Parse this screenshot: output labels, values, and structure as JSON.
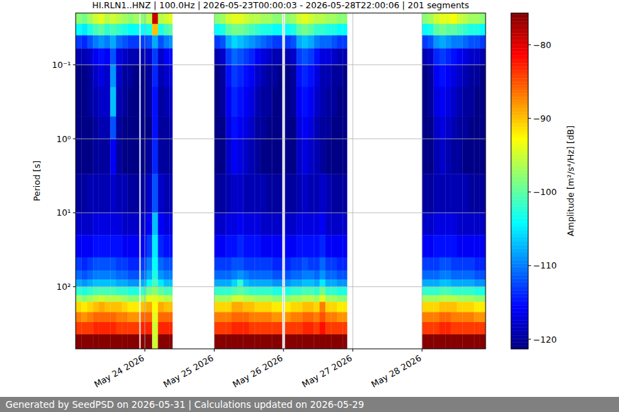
{
  "chart_data": {
    "type": "heatmap",
    "title": "HI.RLN1..HNZ | 100.0Hz | 2026-05-23T00:00:03 - 2026-05-28T22:00:06 | 201 segments",
    "footer": "Generated by SeedPSD on 2026-05-31 | Calculations updated on 2026-05-29",
    "y_label": "Period [s]",
    "log": "y",
    "grid": true,
    "xlim": [
      "2026-05-23T00:00",
      "2026-05-28T22:00"
    ],
    "ylim": [
      0.02,
      690
    ],
    "xticks": [
      {
        "value": "2026-05-24T00:00",
        "label": "May 24 2026"
      },
      {
        "value": "2026-05-25T00:00",
        "label": "May 25 2026"
      },
      {
        "value": "2026-05-26T00:00",
        "label": "May 26 2026"
      },
      {
        "value": "2026-05-27T00:00",
        "label": "May 27 2026"
      },
      {
        "value": "2026-05-28T00:00",
        "label": "May 28 2026"
      }
    ],
    "yticks": [
      {
        "value": 0.1,
        "label": "10⁻¹"
      },
      {
        "value": 1,
        "label": "10⁰"
      },
      {
        "value": 10,
        "label": "10¹"
      },
      {
        "value": 100,
        "label": "10²"
      }
    ],
    "x": [
      "2026-05-23T00:00",
      "2026-05-23T02:00",
      "2026-05-23T04:00",
      "2026-05-23T06:00",
      "2026-05-23T08:00",
      "2026-05-23T10:00",
      "2026-05-23T12:00",
      "2026-05-23T14:00",
      "2026-05-23T16:00",
      "2026-05-23T18:00",
      "2026-05-23T20:00",
      "2026-05-23T22:00",
      "2026-05-23T22:30",
      "2026-05-24T00:30",
      "2026-05-24T02:30",
      "2026-05-24T04:30",
      "2026-05-24T06:30",
      "2026-05-24T08:30",
      "2026-05-24T09:30",
      "2026-05-25T00:00",
      "2026-05-25T02:00",
      "2026-05-25T04:00",
      "2026-05-25T06:00",
      "2026-05-25T08:00",
      "2026-05-25T10:00",
      "2026-05-25T12:00",
      "2026-05-25T14:00",
      "2026-05-25T16:00",
      "2026-05-25T18:00",
      "2026-05-25T20:00",
      "2026-05-25T22:00",
      "2026-05-25T23:30",
      "2026-05-26T00:30",
      "2026-05-26T02:30",
      "2026-05-26T04:30",
      "2026-05-26T06:30",
      "2026-05-26T08:30",
      "2026-05-26T10:30",
      "2026-05-26T12:30",
      "2026-05-26T14:30",
      "2026-05-26T16:30",
      "2026-05-26T18:30",
      "2026-05-26T20:30",
      "2026-05-26T22:00",
      "2026-05-28T00:00",
      "2026-05-28T02:00",
      "2026-05-28T04:00",
      "2026-05-28T06:00",
      "2026-05-28T08:00",
      "2026-05-28T10:00",
      "2026-05-28T12:00",
      "2026-05-28T14:00",
      "2026-05-28T16:00",
      "2026-05-28T18:00",
      "2026-05-28T20:00",
      "2026-05-28T22:00"
    ],
    "y": [
      0.02,
      0.028,
      0.04,
      0.06,
      0.1,
      0.2,
      0.5,
      1,
      3,
      10,
      20,
      40,
      60,
      80,
      100,
      130,
      160,
      220,
      300,
      440,
      690
    ],
    "cells": [
      [
        -98,
        -104,
        -113,
        -119,
        -121,
        -121,
        -121,
        -121,
        -120,
        -118,
        -116,
        -113,
        -111,
        -108,
        -102,
        -97,
        -91,
        -87,
        -84,
        -76
      ],
      [
        -99,
        -105,
        -114,
        -119,
        -121,
        -121,
        -121,
        -121,
        -120,
        -118,
        -116,
        -114,
        -112,
        -109,
        -103,
        -98,
        -92,
        -88,
        -84,
        -76
      ],
      [
        -97,
        -103,
        -112,
        -118,
        -120,
        -120,
        -121,
        -121,
        -119,
        -118,
        -116,
        -113,
        -111,
        -108,
        -102,
        -97,
        -91,
        -87,
        -84,
        -76
      ],
      [
        -95,
        -101,
        -110,
        -116,
        -118,
        -119,
        -120,
        -120,
        -119,
        -117,
        -115,
        -112,
        -110,
        -107,
        -101,
        -96,
        -90,
        -86,
        -83,
        -76
      ],
      [
        -94,
        -100,
        -109,
        -115,
        -117,
        -118,
        -119,
        -120,
        -119,
        -117,
        -115,
        -112,
        -110,
        -107,
        -101,
        -95,
        -89,
        -86,
        -83,
        -76
      ],
      [
        -96,
        -102,
        -110,
        -116,
        -118,
        -118,
        -119,
        -120,
        -119,
        -117,
        -115,
        -112,
        -110,
        -107,
        -101,
        -96,
        -90,
        -86,
        -83,
        -76
      ],
      [
        -95,
        -101,
        -108,
        -112,
        -109,
        -107,
        -112,
        -116,
        -118,
        -117,
        -115,
        -112,
        -110,
        -107,
        -101,
        -96,
        -90,
        -86,
        -83,
        -76
      ],
      [
        -96,
        -102,
        -111,
        -117,
        -118,
        -119,
        -120,
        -120,
        -119,
        -117,
        -115,
        -113,
        -111,
        -108,
        -102,
        -96,
        -90,
        -87,
        -84,
        -76
      ],
      [
        -97,
        -103,
        -112,
        -118,
        -120,
        -120,
        -121,
        -121,
        -119,
        -118,
        -116,
        -113,
        -111,
        -108,
        -102,
        -97,
        -91,
        -87,
        -84,
        -76
      ],
      [
        -98,
        -104,
        -113,
        -119,
        -120,
        -121,
        -121,
        -121,
        -120,
        -118,
        -116,
        -114,
        -112,
        -109,
        -103,
        -98,
        -92,
        -88,
        -84,
        -76
      ],
      [
        -97,
        -104,
        -113,
        -119,
        -121,
        -121,
        -121,
        -121,
        -120,
        -118,
        -116,
        -114,
        -112,
        -109,
        -103,
        -98,
        -92,
        -88,
        -84,
        -76
      ],
      null,
      [
        -98,
        -104,
        -113,
        -119,
        -121,
        -121,
        -121,
        -121,
        -120,
        -118,
        -116,
        -113,
        -111,
        -108,
        -102,
        -97,
        -90,
        -86,
        -83,
        -76
      ],
      [
        -96,
        -103,
        -112,
        -118,
        -120,
        -120,
        -121,
        -120,
        -118,
        -116,
        -113,
        -110,
        -108,
        -104,
        -99,
        -94,
        -89,
        -86,
        -83,
        -76
      ],
      [
        -79,
        -90,
        -108,
        -113,
        -114,
        -115,
        -115,
        -114,
        -112,
        -107,
        -105,
        -104,
        -103,
        -101,
        -98,
        -94,
        -93,
        -94,
        -95,
        -95
      ],
      [
        -96,
        -103,
        -112,
        -118,
        -119,
        -120,
        -120,
        -120,
        -118,
        -116,
        -114,
        -111,
        -109,
        -105,
        -100,
        -95,
        -89,
        -86,
        -83,
        -76
      ],
      [
        -95,
        -101,
        -110,
        -116,
        -118,
        -119,
        -120,
        -120,
        -119,
        -117,
        -115,
        -112,
        -110,
        -107,
        -101,
        -96,
        -90,
        -86,
        -83,
        -76
      ],
      [
        -94,
        -100,
        -109,
        -115,
        -117,
        -118,
        -119,
        -120,
        -119,
        -117,
        -115,
        -112,
        -110,
        -107,
        -101,
        -96,
        -90,
        -86,
        -83,
        -76
      ],
      null,
      [
        -98,
        -104,
        -113,
        -119,
        -121,
        -121,
        -121,
        -121,
        -120,
        -118,
        -116,
        -113,
        -111,
        -108,
        -102,
        -97,
        -91,
        -87,
        -84,
        -76
      ],
      [
        -97,
        -103,
        -112,
        -118,
        -120,
        -120,
        -121,
        -121,
        -120,
        -118,
        -116,
        -113,
        -111,
        -108,
        -102,
        -97,
        -91,
        -87,
        -84,
        -76
      ],
      [
        -95,
        -100,
        -108,
        -113,
        -115,
        -116,
        -117,
        -118,
        -119,
        -117,
        -115,
        -113,
        -111,
        -108,
        -102,
        -97,
        -91,
        -87,
        -84,
        -76
      ],
      [
        -94,
        -99,
        -106,
        -111,
        -113,
        -114,
        -115,
        -116,
        -118,
        -117,
        -115,
        -112,
        -110,
        -106,
        -101,
        -95,
        -89,
        -86,
        -83,
        -76
      ],
      [
        -94,
        -99,
        -107,
        -112,
        -114,
        -115,
        -116,
        -117,
        -118,
        -116,
        -114,
        -112,
        -109,
        -102,
        -100,
        -95,
        -89,
        -86,
        -83,
        -76
      ],
      [
        -95,
        -100,
        -108,
        -113,
        -115,
        -116,
        -117,
        -118,
        -119,
        -117,
        -115,
        -113,
        -110,
        -107,
        -101,
        -96,
        -90,
        -86,
        -83,
        -76
      ],
      [
        -96,
        -101,
        -109,
        -114,
        -116,
        -117,
        -118,
        -119,
        -119,
        -117,
        -115,
        -113,
        -111,
        -108,
        -102,
        -96,
        -90,
        -87,
        -84,
        -76
      ],
      [
        -96,
        -102,
        -110,
        -116,
        -118,
        -119,
        -120,
        -120,
        -119,
        -117,
        -115,
        -113,
        -111,
        -108,
        -102,
        -97,
        -91,
        -87,
        -84,
        -76
      ],
      [
        -97,
        -103,
        -111,
        -117,
        -119,
        -120,
        -120,
        -121,
        -119,
        -118,
        -116,
        -113,
        -111,
        -108,
        -102,
        -97,
        -91,
        -87,
        -84,
        -76
      ],
      [
        -97,
        -103,
        -112,
        -118,
        -120,
        -120,
        -121,
        -121,
        -120,
        -118,
        -116,
        -113,
        -111,
        -108,
        -102,
        -97,
        -91,
        -87,
        -84,
        -76
      ],
      [
        -98,
        -104,
        -113,
        -119,
        -120,
        -121,
        -121,
        -121,
        -120,
        -118,
        -116,
        -114,
        -112,
        -109,
        -103,
        -98,
        -92,
        -88,
        -84,
        -76
      ],
      [
        -98,
        -104,
        -113,
        -119,
        -121,
        -121,
        -121,
        -121,
        -120,
        -118,
        -116,
        -114,
        -112,
        -109,
        -103,
        -98,
        -92,
        -88,
        -84,
        -76
      ],
      null,
      [
        -98,
        -104,
        -113,
        -119,
        -121,
        -121,
        -121,
        -121,
        -120,
        -118,
        -116,
        -114,
        -112,
        -109,
        -103,
        -98,
        -92,
        -88,
        -84,
        -76
      ],
      [
        -97,
        -103,
        -112,
        -118,
        -120,
        -120,
        -121,
        -121,
        -120,
        -118,
        -116,
        -113,
        -111,
        -108,
        -102,
        -97,
        -91,
        -87,
        -84,
        -76
      ],
      [
        -95,
        -100,
        -108,
        -113,
        -115,
        -116,
        -117,
        -118,
        -119,
        -117,
        -115,
        -113,
        -111,
        -108,
        -102,
        -97,
        -91,
        -87,
        -84,
        -76
      ],
      [
        -94,
        -99,
        -107,
        -112,
        -114,
        -115,
        -116,
        -117,
        -118,
        -117,
        -115,
        -112,
        -110,
        -107,
        -101,
        -96,
        -90,
        -86,
        -83,
        -76
      ],
      [
        -95,
        -100,
        -108,
        -113,
        -115,
        -116,
        -117,
        -118,
        -119,
        -117,
        -115,
        -113,
        -110,
        -107,
        -101,
        -96,
        -90,
        -86,
        -83,
        -76
      ],
      [
        -96,
        -102,
        -110,
        -115,
        -117,
        -118,
        -119,
        -119,
        -119,
        -117,
        -115,
        -113,
        -111,
        -108,
        -102,
        -97,
        -91,
        -87,
        -84,
        -76
      ],
      [
        -96,
        -102,
        -111,
        -117,
        -119,
        -119,
        -120,
        -120,
        -118,
        -116,
        -114,
        -111,
        -109,
        -105,
        -99,
        -94,
        -87,
        -85,
        -82,
        -76
      ],
      [
        -97,
        -103,
        -111,
        -117,
        -119,
        -120,
        -120,
        -121,
        -119,
        -118,
        -116,
        -113,
        -111,
        -108,
        -102,
        -97,
        -91,
        -87,
        -84,
        -76
      ],
      [
        -97,
        -103,
        -112,
        -118,
        -120,
        -120,
        -121,
        -121,
        -120,
        -118,
        -116,
        -113,
        -111,
        -108,
        -102,
        -97,
        -91,
        -87,
        -84,
        -76
      ],
      [
        -98,
        -104,
        -113,
        -119,
        -120,
        -121,
        -121,
        -121,
        -120,
        -118,
        -116,
        -114,
        -112,
        -109,
        -103,
        -98,
        -92,
        -88,
        -84,
        -76
      ],
      [
        -98,
        -104,
        -113,
        -119,
        -121,
        -121,
        -121,
        -121,
        -120,
        -118,
        -116,
        -114,
        -112,
        -109,
        -103,
        -98,
        -92,
        -88,
        -84,
        -76
      ],
      null,
      [
        -98,
        -104,
        -113,
        -119,
        -121,
        -121,
        -121,
        -121,
        -120,
        -118,
        -116,
        -113,
        -111,
        -108,
        -102,
        -97,
        -91,
        -87,
        -84,
        -76
      ],
      [
        -97,
        -103,
        -112,
        -118,
        -120,
        -120,
        -121,
        -121,
        -120,
        -118,
        -116,
        -113,
        -111,
        -108,
        -102,
        -97,
        -91,
        -87,
        -84,
        -76
      ],
      [
        -95,
        -100,
        -109,
        -114,
        -116,
        -117,
        -118,
        -119,
        -119,
        -117,
        -115,
        -113,
        -111,
        -108,
        -102,
        -97,
        -91,
        -87,
        -84,
        -76
      ],
      [
        -94,
        -99,
        -108,
        -113,
        -115,
        -116,
        -117,
        -118,
        -119,
        -117,
        -115,
        -112,
        -110,
        -107,
        -101,
        -96,
        -90,
        -86,
        -83,
        -76
      ],
      [
        -94,
        -100,
        -109,
        -114,
        -116,
        -117,
        -118,
        -119,
        -119,
        -117,
        -115,
        -112,
        -110,
        -107,
        -101,
        -96,
        -90,
        -86,
        -83,
        -76
      ],
      [
        -93,
        -100,
        -110,
        -115,
        -117,
        -118,
        -119,
        -120,
        -119,
        -117,
        -115,
        -113,
        -111,
        -108,
        -102,
        -96,
        -90,
        -87,
        -84,
        -76
      ],
      [
        -95,
        -101,
        -110,
        -116,
        -118,
        -119,
        -120,
        -120,
        -119,
        -118,
        -116,
        -113,
        -111,
        -108,
        -102,
        -97,
        -91,
        -87,
        -84,
        -76
      ],
      [
        -96,
        -102,
        -111,
        -117,
        -119,
        -120,
        -120,
        -121,
        -119,
        -118,
        -116,
        -113,
        -111,
        -108,
        -102,
        -97,
        -91,
        -87,
        -84,
        -76
      ],
      [
        -97,
        -103,
        -112,
        -118,
        -120,
        -120,
        -121,
        -121,
        -120,
        -118,
        -116,
        -113,
        -111,
        -108,
        -102,
        -97,
        -91,
        -87,
        -84,
        -76
      ],
      [
        -97,
        -103,
        -112,
        -118,
        -120,
        -121,
        -121,
        -121,
        -120,
        -118,
        -116,
        -114,
        -112,
        -109,
        -103,
        -98,
        -92,
        -88,
        -84,
        -76
      ],
      [
        -98,
        -104,
        -113,
        -119,
        -121,
        -121,
        -121,
        -121,
        -120,
        -118,
        -116,
        -114,
        -112,
        -109,
        -103,
        -98,
        -92,
        -88,
        -84,
        -76
      ]
    ],
    "colorbar": {
      "label": "Amplitude [m²/s⁴/Hz] [dB]",
      "range": [
        -121.3,
        -75.7
      ],
      "ticks": [
        -80,
        -90,
        -100,
        -110,
        -120
      ]
    }
  }
}
